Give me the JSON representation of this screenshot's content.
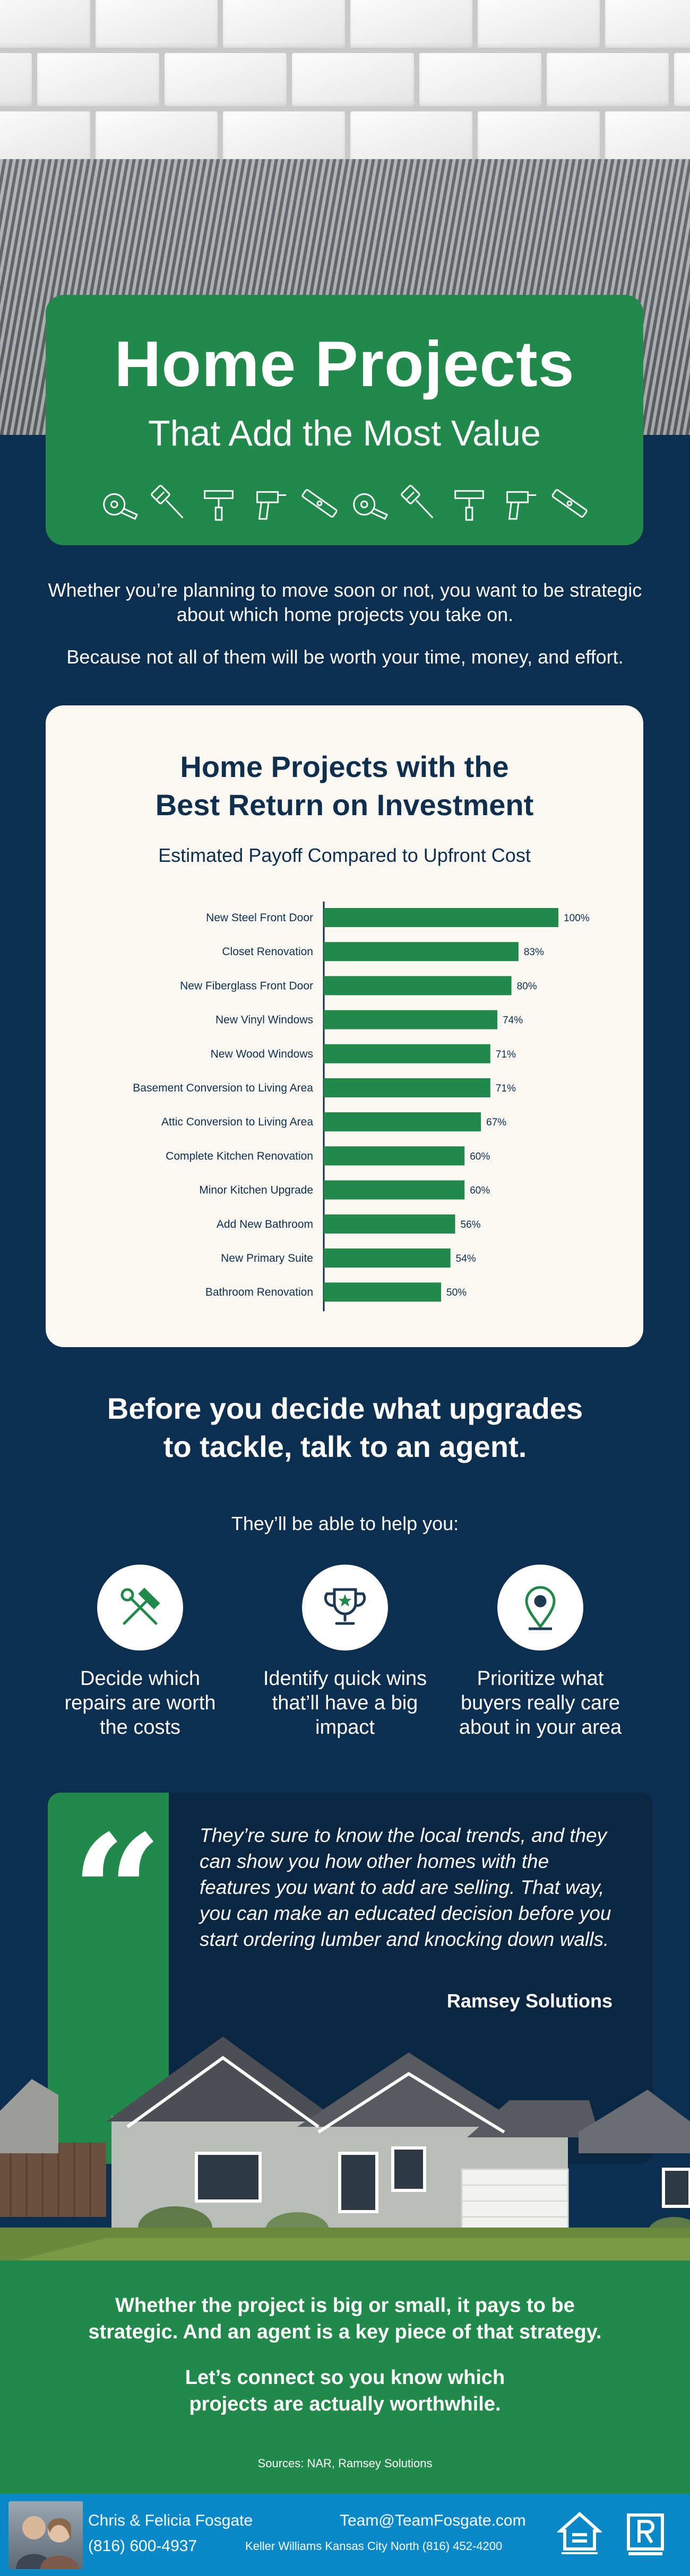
{
  "header": {
    "title": "Home Projects",
    "subtitle": "That Add the Most Value",
    "tool_icons": [
      "measuring-tape-icon",
      "paint-brush-icon",
      "trowel-icon",
      "drill-icon",
      "level-icon",
      "measuring-tape-icon",
      "paint-brush-icon",
      "trowel-icon",
      "drill-icon",
      "level-icon"
    ]
  },
  "intro": {
    "line1": "Whether you’re planning to move soon or not, you want to be strategic about which home projects you take on.",
    "line2": "Because not all of them will be worth your time, money, and effort."
  },
  "chart_card": {
    "title": "Home Projects with the\nBest Return on Investment",
    "subtitle": "Estimated Payoff Compared to Upfront Cost"
  },
  "chart_data": {
    "type": "bar",
    "orientation": "horizontal",
    "title": "Home Projects with the Best Return on Investment",
    "subtitle": "Estimated Payoff Compared to Upfront Cost",
    "categories": [
      "New Steel Front Door",
      "Closet Renovation",
      "New Fiberglass Front Door",
      "New Vinyl Windows",
      "New Wood Windows",
      "Basement Conversion to Living Area",
      "Attic Conversion to Living Area",
      "Complete Kitchen Renovation",
      "Minor Kitchen Upgrade",
      "Add New Bathroom",
      "New Primary Suite",
      "Bathroom Renovation"
    ],
    "values": [
      100,
      83,
      80,
      74,
      71,
      71,
      67,
      60,
      60,
      56,
      54,
      50
    ],
    "value_labels": [
      "100%",
      "83%",
      "80%",
      "74%",
      "71%",
      "71%",
      "67%",
      "60%",
      "60%",
      "56%",
      "54%",
      "50%"
    ],
    "xlim": [
      0,
      100
    ],
    "grid": false,
    "bar_color": "#21894a"
  },
  "agent": {
    "heading": "Before you decide what upgrades\nto tackle, talk to an agent.",
    "sub": "They’ll be able to help you:",
    "benefits": [
      {
        "icon": "hammer-wrench-icon",
        "label": "Decide which repairs are worth the costs"
      },
      {
        "icon": "trophy-icon",
        "label": "Identify quick wins that’ll have a big impact"
      },
      {
        "icon": "location-pin-icon",
        "label": "Prioritize what buyers really care about in your area"
      }
    ]
  },
  "quote": {
    "text": "They’re sure to know the local trends, and they can show you how other homes with the features you want to add are selling. That way, you can make an educated decision before you start ordering lumber and knocking down walls.",
    "source": "Ramsey Solutions"
  },
  "closing": {
    "line1": "Whether the project is big or small, it pays to be\nstrategic. And an agent is a key piece of that strategy.",
    "line2": "Let’s connect so you know which\nprojects are actually worthwhile.",
    "sources": "Sources: NAR, Ramsey Solutions"
  },
  "footer": {
    "name": "Chris & Felicia Fosgate",
    "phone": "(816) 600-4937",
    "email": "Team@TeamFosgate.com",
    "office": "Keller Williams Kansas City North (816) 452-4200",
    "logos": [
      "equal-housing-logo",
      "realtor-logo"
    ]
  },
  "colors": {
    "navy": "#0d2f4f",
    "green": "#21894a",
    "card": "#f9f8f3",
    "footer_blue": "#0a89c9"
  }
}
